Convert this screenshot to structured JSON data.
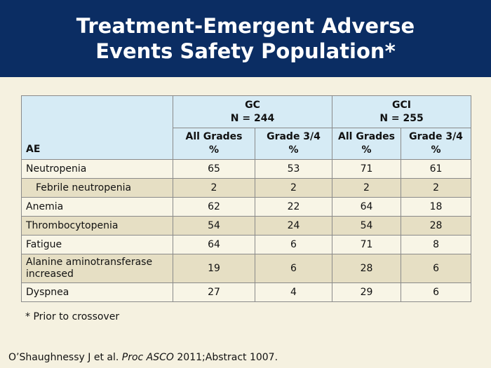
{
  "title": {
    "line1": "Treatment-Emergent Adverse",
    "line2": "Events Safety Population*"
  },
  "table": {
    "ae_header": "AE",
    "groups": [
      {
        "name": "GC",
        "n": "N = 244"
      },
      {
        "name": "GCI",
        "n": "N = 255"
      }
    ],
    "subheaders": [
      {
        "l1": "All Grades",
        "l2": "%"
      },
      {
        "l1": "Grade 3/4",
        "l2": "%"
      },
      {
        "l1": "All Grades",
        "l2": "%"
      },
      {
        "l1": "Grade 3/4",
        "l2": "%"
      }
    ],
    "rows": [
      {
        "ae": "Neutropenia",
        "gc_all": "65",
        "gc_g34": "53",
        "gci_all": "71",
        "gci_g34": "61"
      },
      {
        "ae": "Febrile neutropenia",
        "gc_all": "2",
        "gc_g34": "2",
        "gci_all": "2",
        "gci_g34": "2"
      },
      {
        "ae": "Anemia",
        "gc_all": "62",
        "gc_g34": "22",
        "gci_all": "64",
        "gci_g34": "18"
      },
      {
        "ae": "Thrombocytopenia",
        "gc_all": "54",
        "gc_g34": "24",
        "gci_all": "54",
        "gci_g34": "28"
      },
      {
        "ae": "Fatigue",
        "gc_all": "64",
        "gc_g34": "6",
        "gci_all": "71",
        "gci_g34": "8"
      },
      {
        "ae": "Alanine aminotransferase increased",
        "gc_all": "19",
        "gc_g34": "6",
        "gci_all": "28",
        "gci_g34": "6"
      },
      {
        "ae": "Dyspnea",
        "gc_all": "27",
        "gc_g34": "4",
        "gci_all": "29",
        "gci_g34": "6"
      }
    ]
  },
  "footnote": "* Prior to crossover",
  "citation": {
    "authors": "O’Shaughnessy J et al.",
    "journal": "Proc ASCO",
    "rest": "2011;Abstract 1007."
  },
  "colors": {
    "header_bg": "#0b2d63",
    "table_header_bg": "#d6ebf5",
    "row_light": "#f8f5e6",
    "row_dark": "#e6dfc4",
    "page_bg": "#f5f1e0"
  }
}
